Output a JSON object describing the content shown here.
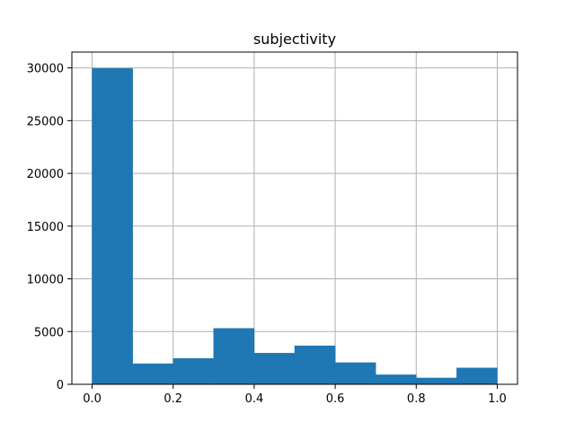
{
  "chart_data": {
    "type": "bar",
    "title": "subjectivity",
    "xlabel": "",
    "ylabel": "",
    "bins": [
      {
        "x0": 0.0,
        "x1": 0.1,
        "value": 29950
      },
      {
        "x0": 0.1,
        "x1": 0.2,
        "value": 1950
      },
      {
        "x0": 0.2,
        "x1": 0.3,
        "value": 2450
      },
      {
        "x0": 0.3,
        "x1": 0.4,
        "value": 5300
      },
      {
        "x0": 0.4,
        "x1": 0.5,
        "value": 2950
      },
      {
        "x0": 0.5,
        "x1": 0.6,
        "value": 3650
      },
      {
        "x0": 0.6,
        "x1": 0.7,
        "value": 2050
      },
      {
        "x0": 0.7,
        "x1": 0.8,
        "value": 900
      },
      {
        "x0": 0.8,
        "x1": 0.9,
        "value": 600
      },
      {
        "x0": 0.9,
        "x1": 1.0,
        "value": 1550
      }
    ],
    "xlim": [
      -0.05,
      1.05
    ],
    "ylim": [
      0,
      31500
    ],
    "xticks": [
      {
        "value": 0.0,
        "label": "0.0"
      },
      {
        "value": 0.2,
        "label": "0.2"
      },
      {
        "value": 0.4,
        "label": "0.4"
      },
      {
        "value": 0.6,
        "label": "0.6"
      },
      {
        "value": 0.8,
        "label": "0.8"
      },
      {
        "value": 1.0,
        "label": "1.0"
      }
    ],
    "yticks": [
      {
        "value": 0,
        "label": "0"
      },
      {
        "value": 5000,
        "label": "5000"
      },
      {
        "value": 10000,
        "label": "10000"
      },
      {
        "value": 15000,
        "label": "15000"
      },
      {
        "value": 20000,
        "label": "20000"
      },
      {
        "value": 25000,
        "label": "25000"
      },
      {
        "value": 30000,
        "label": "30000"
      }
    ],
    "grid": true,
    "legend": "none",
    "colors": {
      "bar": "#1f77b4",
      "grid": "#b0b0b0",
      "axis": "#000000"
    }
  }
}
